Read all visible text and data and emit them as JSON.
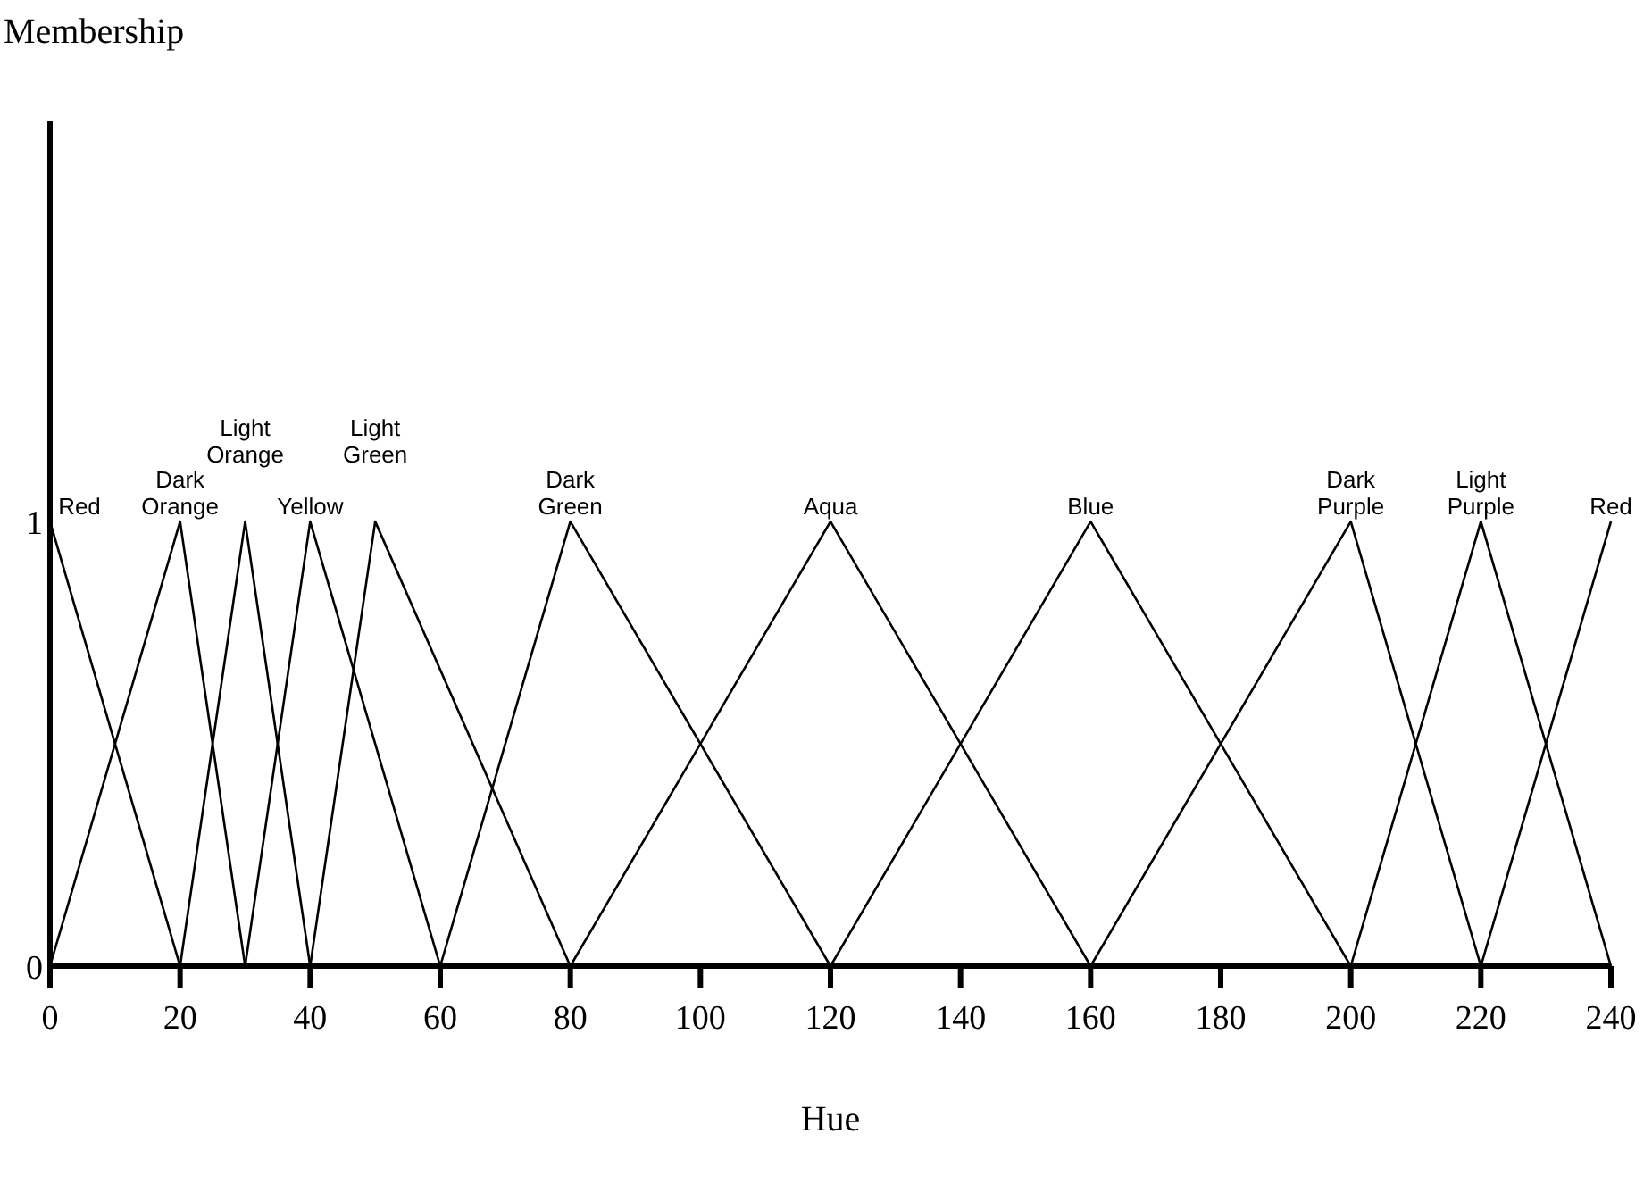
{
  "chart_data": {
    "type": "line",
    "xlabel": "Hue",
    "ylabel": "Membership",
    "xlim": [
      0,
      240
    ],
    "ylim": [
      0,
      1.9
    ],
    "xticks": [
      0,
      20,
      40,
      60,
      80,
      100,
      120,
      140,
      160,
      180,
      200,
      220,
      240
    ],
    "yticks": [
      0,
      1
    ],
    "marker": "none",
    "line_style": "solid",
    "series": [
      {
        "name": "Red",
        "color": "#000000",
        "x": [
          0,
          20
        ],
        "values": [
          1,
          0
        ]
      },
      {
        "name": "Dark Orange",
        "color": "#000000",
        "x": [
          0,
          20,
          30
        ],
        "values": [
          0,
          1,
          0
        ]
      },
      {
        "name": "Light Orange",
        "color": "#000000",
        "x": [
          20,
          30,
          40
        ],
        "values": [
          0,
          1,
          0
        ]
      },
      {
        "name": "Yellow",
        "color": "#000000",
        "x": [
          30,
          40,
          60
        ],
        "values": [
          0,
          1,
          0
        ]
      },
      {
        "name": "Light Green",
        "color": "#000000",
        "x": [
          40,
          50,
          80
        ],
        "values": [
          0,
          1,
          0
        ]
      },
      {
        "name": "Dark Green",
        "color": "#000000",
        "x": [
          60,
          80,
          120
        ],
        "values": [
          0,
          1,
          0
        ]
      },
      {
        "name": "Aqua",
        "color": "#000000",
        "x": [
          80,
          120,
          160
        ],
        "values": [
          0,
          1,
          0
        ]
      },
      {
        "name": "Blue",
        "color": "#000000",
        "x": [
          120,
          160,
          200
        ],
        "values": [
          0,
          1,
          0
        ]
      },
      {
        "name": "Dark Purple",
        "color": "#000000",
        "x": [
          160,
          200,
          220
        ],
        "values": [
          0,
          1,
          0
        ]
      },
      {
        "name": "Light Purple",
        "color": "#000000",
        "x": [
          200,
          220,
          240
        ],
        "values": [
          0,
          1,
          0
        ]
      },
      {
        "name": "Red",
        "color": "#000000",
        "x": [
          220,
          240
        ],
        "values": [
          0,
          1
        ]
      }
    ]
  }
}
